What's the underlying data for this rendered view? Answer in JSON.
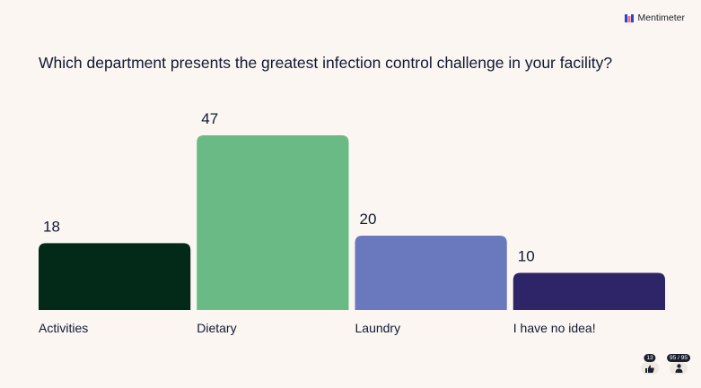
{
  "brand": {
    "name": "Mentimeter"
  },
  "question": "Which department presents the greatest infection control challenge in your facility?",
  "chart_data": {
    "type": "bar",
    "categories": [
      "Activities",
      "Dietary",
      "Laundry",
      "I have no idea!"
    ],
    "values": [
      18,
      47,
      20,
      10
    ],
    "colors": [
      "#032918",
      "#69ba84",
      "#6a79bd",
      "#2e2468"
    ],
    "value_labels": [
      "18",
      "47",
      "20",
      "10"
    ],
    "ylim": [
      0,
      47
    ]
  },
  "footer": {
    "reactions_count": "13",
    "reactions_icon": "thumbs-up-icon",
    "participants_count": "95 / 95",
    "participants_icon": "person-icon"
  }
}
